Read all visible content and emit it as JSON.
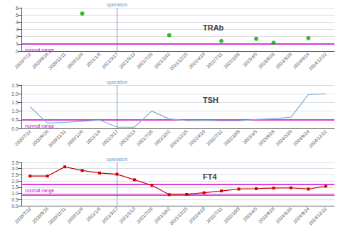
{
  "chart_data": [
    {
      "type": "scatter",
      "title": "TRAb",
      "categories": [
        "2020/7/22",
        "2020/9/26",
        "2020/11/11",
        "2020/12/6",
        "2021/1/6",
        "2021/3/17",
        "2021/5/13",
        "2021/7/26",
        "2021/10/2",
        "2021/12/25",
        "2022/4/10",
        "2022/7/11",
        "2022/10/8",
        "2023/4/5",
        "2023/9/28",
        "2024/3/26",
        "2024/9/24",
        "2024/12/22"
      ],
      "values": [
        null,
        null,
        null,
        5.2,
        null,
        null,
        null,
        null,
        2.2,
        null,
        null,
        1.4,
        null,
        1.7,
        1.15,
        null,
        1.8,
        null
      ],
      "color": "#00aa00",
      "marker": "circle",
      "ylim": [
        0,
        6
      ],
      "yticks": [
        0,
        1,
        2,
        3,
        4,
        5,
        6
      ],
      "grid": true,
      "annotations": [
        {
          "text": "operation",
          "x": "2021/3/17",
          "color": "#6699cc"
        },
        {
          "text": "normal range",
          "y": [
            1.0
          ],
          "color": "#cc00cc"
        }
      ]
    },
    {
      "type": "line",
      "title": "TSH",
      "categories": [
        "2020/7/22",
        "2020/9/26",
        "2020/11/11",
        "2020/12/6",
        "2021/1/6",
        "2021/3/17",
        "2021/5/13",
        "2021/7/26",
        "2021/10/2",
        "2021/12/25",
        "2022/4/10",
        "2022/7/11",
        "2022/10/8",
        "2023/4/5",
        "2023/9/28",
        "2024/3/26",
        "2024/9/24",
        "2024/12/22"
      ],
      "values": [
        1.25,
        0.3,
        0.35,
        null,
        0.48,
        0.08,
        0.07,
        1.0,
        0.55,
        0.45,
        0.47,
        0.44,
        0.44,
        0.52,
        0.56,
        0.65,
        1.95,
        2.0
      ],
      "color": "#7bafd4",
      "marker": "none",
      "ylim": [
        0,
        2.5
      ],
      "yticks": [
        {
          "value": 0,
          "label": "0.0"
        },
        0.5,
        {
          "value": 1.0,
          "label": "1.0"
        },
        1.5,
        {
          "value": 2.0,
          "label": "2.0"
        },
        2.5
      ],
      "grid": true,
      "annotations": [
        {
          "text": "operation",
          "x": "2021/3/17",
          "color": "#6699cc"
        },
        {
          "text": "normal range",
          "y": [
            0.5
          ],
          "color": "#cc00cc"
        }
      ]
    },
    {
      "type": "line",
      "title": "FT4",
      "categories": [
        "2020/7/22",
        "2020/9/26",
        "2020/11/11",
        "2020/12/6",
        "2021/1/6",
        "2021/3/17",
        "2021/5/13",
        "2021/7/26",
        "2021/10/2",
        "2021/12/25",
        "2022/4/10",
        "2022/7/11",
        "2022/10/8",
        "2023/4/5",
        "2023/9/28",
        "2024/3/26",
        "2024/9/24",
        "2024/12/22"
      ],
      "values": [
        2.4,
        2.4,
        3.15,
        2.85,
        2.65,
        2.55,
        2.1,
        1.65,
        0.9,
        0.92,
        1.05,
        1.2,
        1.35,
        1.38,
        1.43,
        1.45,
        1.35,
        1.58
      ],
      "color": "#cc0000",
      "marker": "square",
      "ylim": [
        0,
        3.5
      ],
      "yticks": [
        {
          "value": 0,
          "label": "0.0"
        },
        0.5,
        {
          "value": 1.0,
          "label": "1.0"
        },
        1.5,
        {
          "value": 2.0,
          "label": "2.0"
        },
        2.5,
        {
          "value": 3.0,
          "label": "3.0"
        },
        3.5
      ],
      "grid": true,
      "annotations": [
        {
          "text": "operation",
          "x": "2021/3/17",
          "color": "#6699cc"
        },
        {
          "text": "normal range",
          "y": [
            1.75,
            0.9
          ],
          "color": "#cc00cc"
        }
      ]
    }
  ]
}
